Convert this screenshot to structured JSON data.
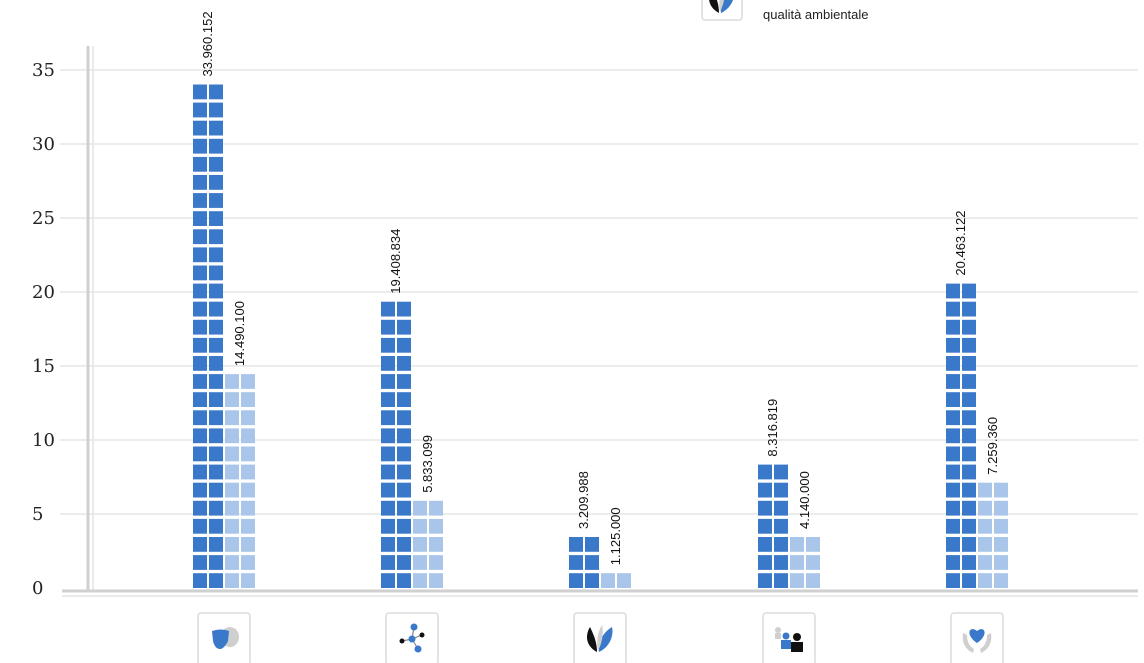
{
  "chart_data": {
    "type": "bar",
    "title": "",
    "xlabel": "",
    "ylabel": "",
    "ylim": [
      0,
      35
    ],
    "yticks": [
      0,
      5,
      10,
      15,
      20,
      25,
      30,
      35
    ],
    "grid": true,
    "categories": [
      "theatre-masks-icon",
      "network-icon",
      "leaf-icon",
      "people-icon",
      "hands-heart-icon"
    ],
    "category_icons": [
      "theatre-masks-icon",
      "network-icon",
      "leaf-icon",
      "people-icon",
      "hands-heart-icon"
    ],
    "series": [
      {
        "color": "#3a78c9",
        "values": [
          33.960152,
          19.408834,
          3.209988,
          8.316819,
          20.463122
        ],
        "labels": [
          "33.960.152",
          "19.408.834",
          "3.209.988",
          "8.316.819",
          "20.463.122"
        ]
      },
      {
        "color": "#a9c6ea",
        "values": [
          14.4901,
          5.833099,
          1.125,
          4.14,
          7.25936
        ],
        "labels": [
          "14.490.100",
          "5.833.099",
          "1.125.000",
          "4.140.000",
          "7.259.360"
        ]
      }
    ],
    "legend": {
      "placement": "top-right",
      "entries": [
        {
          "icon": "leaf-icon",
          "label": "qualità ambientale"
        }
      ]
    }
  }
}
